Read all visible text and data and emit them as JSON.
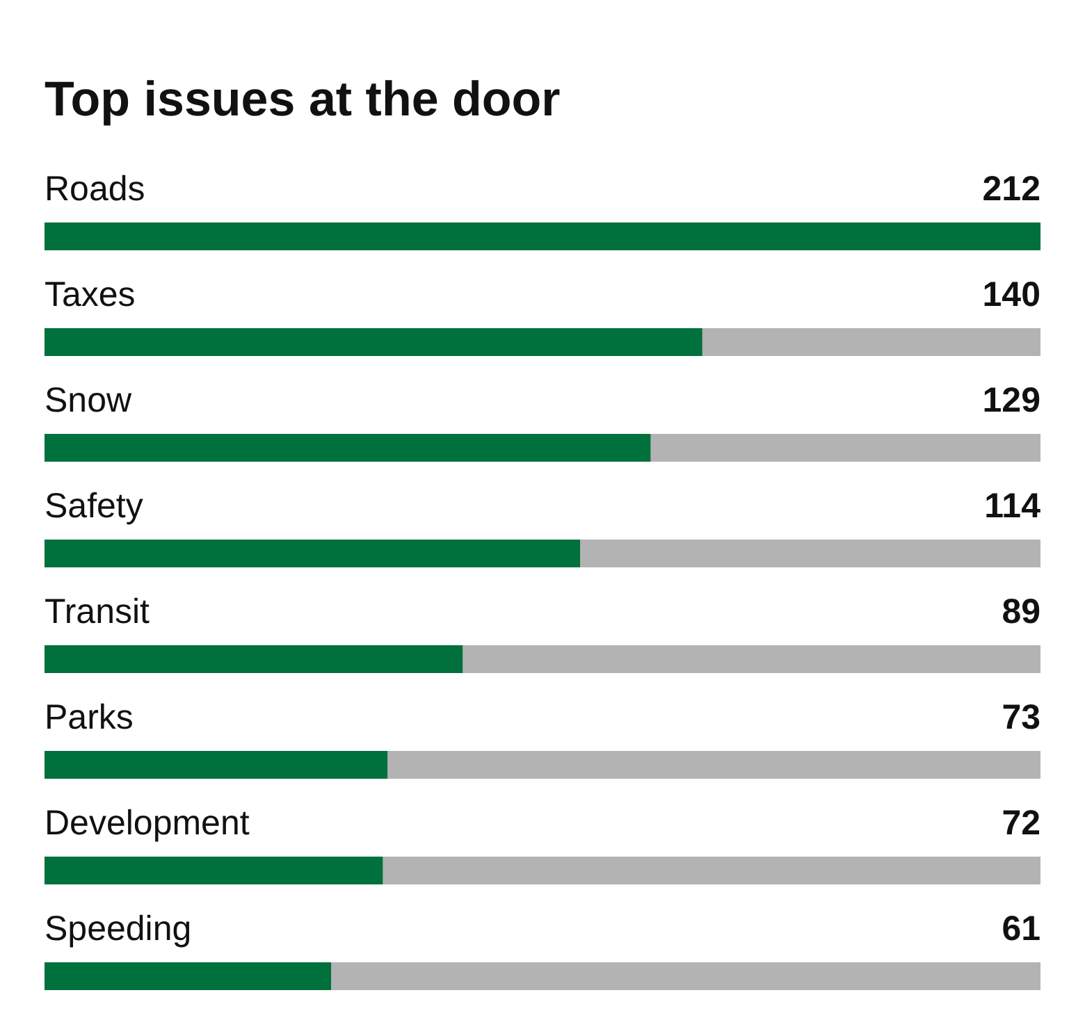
{
  "chart_data": {
    "type": "bar",
    "orientation": "horizontal",
    "title": "Top issues at the door",
    "categories": [
      "Roads",
      "Taxes",
      "Snow",
      "Safety",
      "Transit",
      "Parks",
      "Development",
      "Speeding"
    ],
    "values": [
      212,
      140,
      129,
      114,
      89,
      73,
      72,
      61
    ],
    "color": "#00703c",
    "data_labels": true
  }
}
